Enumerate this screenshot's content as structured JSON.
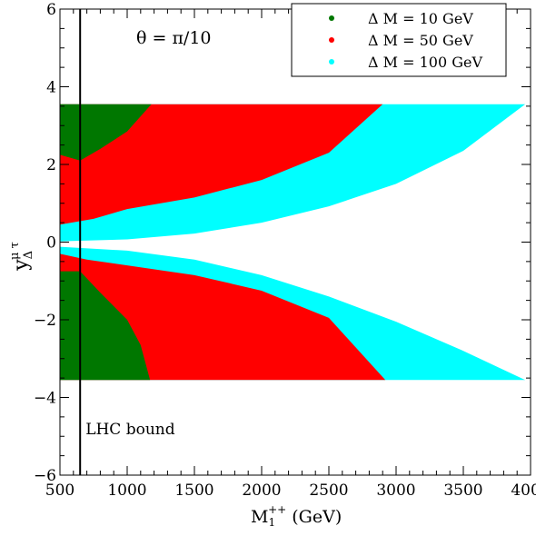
{
  "chart_data": {
    "type": "scatter",
    "xlabel": {
      "main": "M",
      "sub": "1",
      "sup": "++",
      "unit": " (GeV)"
    },
    "ylabel": {
      "main": "y",
      "sub": "Δ",
      "sup": "μ τ"
    },
    "xlim": [
      500,
      4000
    ],
    "ylim": [
      -6,
      6
    ],
    "xticks": [
      500,
      1000,
      1500,
      2000,
      2500,
      3000,
      3500,
      4000
    ],
    "yticks": [
      -6,
      -4,
      -2,
      0,
      2,
      4,
      6
    ],
    "ytick_labels": [
      "−6",
      "−4",
      "−2",
      "0",
      "2",
      "4",
      "6"
    ],
    "grid": false,
    "legend_position": "top-right",
    "annotation": "θ = π/10",
    "y_max_abs": 3.55,
    "series": [
      {
        "name": "Δ M = 100 GeV",
        "color": "#00ffff",
        "upper_inner_boundary": [
          [
            500,
            0.02
          ],
          [
            1000,
            0.07
          ],
          [
            1500,
            0.22
          ],
          [
            2000,
            0.5
          ],
          [
            2500,
            0.92
          ],
          [
            3000,
            1.5
          ],
          [
            3500,
            2.35
          ],
          [
            3960,
            3.55
          ]
        ],
        "lower_inner_boundary": [
          [
            500,
            -0.12
          ],
          [
            1000,
            -0.22
          ],
          [
            1500,
            -0.45
          ],
          [
            2000,
            -0.85
          ],
          [
            2500,
            -1.4
          ],
          [
            3000,
            -2.05
          ],
          [
            3500,
            -2.8
          ],
          [
            3960,
            -3.55
          ]
        ]
      },
      {
        "name": "Δ M = 50 GeV",
        "color": "#ff0000",
        "upper_inner_boundary": [
          [
            500,
            0.45
          ],
          [
            750,
            0.6
          ],
          [
            1000,
            0.85
          ],
          [
            1500,
            1.15
          ],
          [
            2000,
            1.6
          ],
          [
            2500,
            2.3
          ],
          [
            2900,
            3.55
          ]
        ],
        "lower_inner_boundary": [
          [
            500,
            -0.3
          ],
          [
            700,
            -0.45
          ],
          [
            1000,
            -0.6
          ],
          [
            1500,
            -0.85
          ],
          [
            2000,
            -1.25
          ],
          [
            2500,
            -1.95
          ],
          [
            2920,
            -3.55
          ]
        ]
      },
      {
        "name": "Δ M = 10 GeV",
        "color": "#007700",
        "upper_inner_boundary": [
          [
            500,
            2.25
          ],
          [
            650,
            2.1
          ],
          [
            800,
            2.4
          ],
          [
            1000,
            2.85
          ],
          [
            1180,
            3.55
          ]
        ],
        "lower_inner_boundary": [
          [
            500,
            -0.75
          ],
          [
            650,
            -0.75
          ],
          [
            800,
            -1.3
          ],
          [
            1000,
            -2.0
          ],
          [
            1100,
            -2.65
          ],
          [
            1170,
            -3.55
          ]
        ]
      }
    ],
    "vertical_line": {
      "x": 650,
      "label": "LHC bound"
    }
  }
}
